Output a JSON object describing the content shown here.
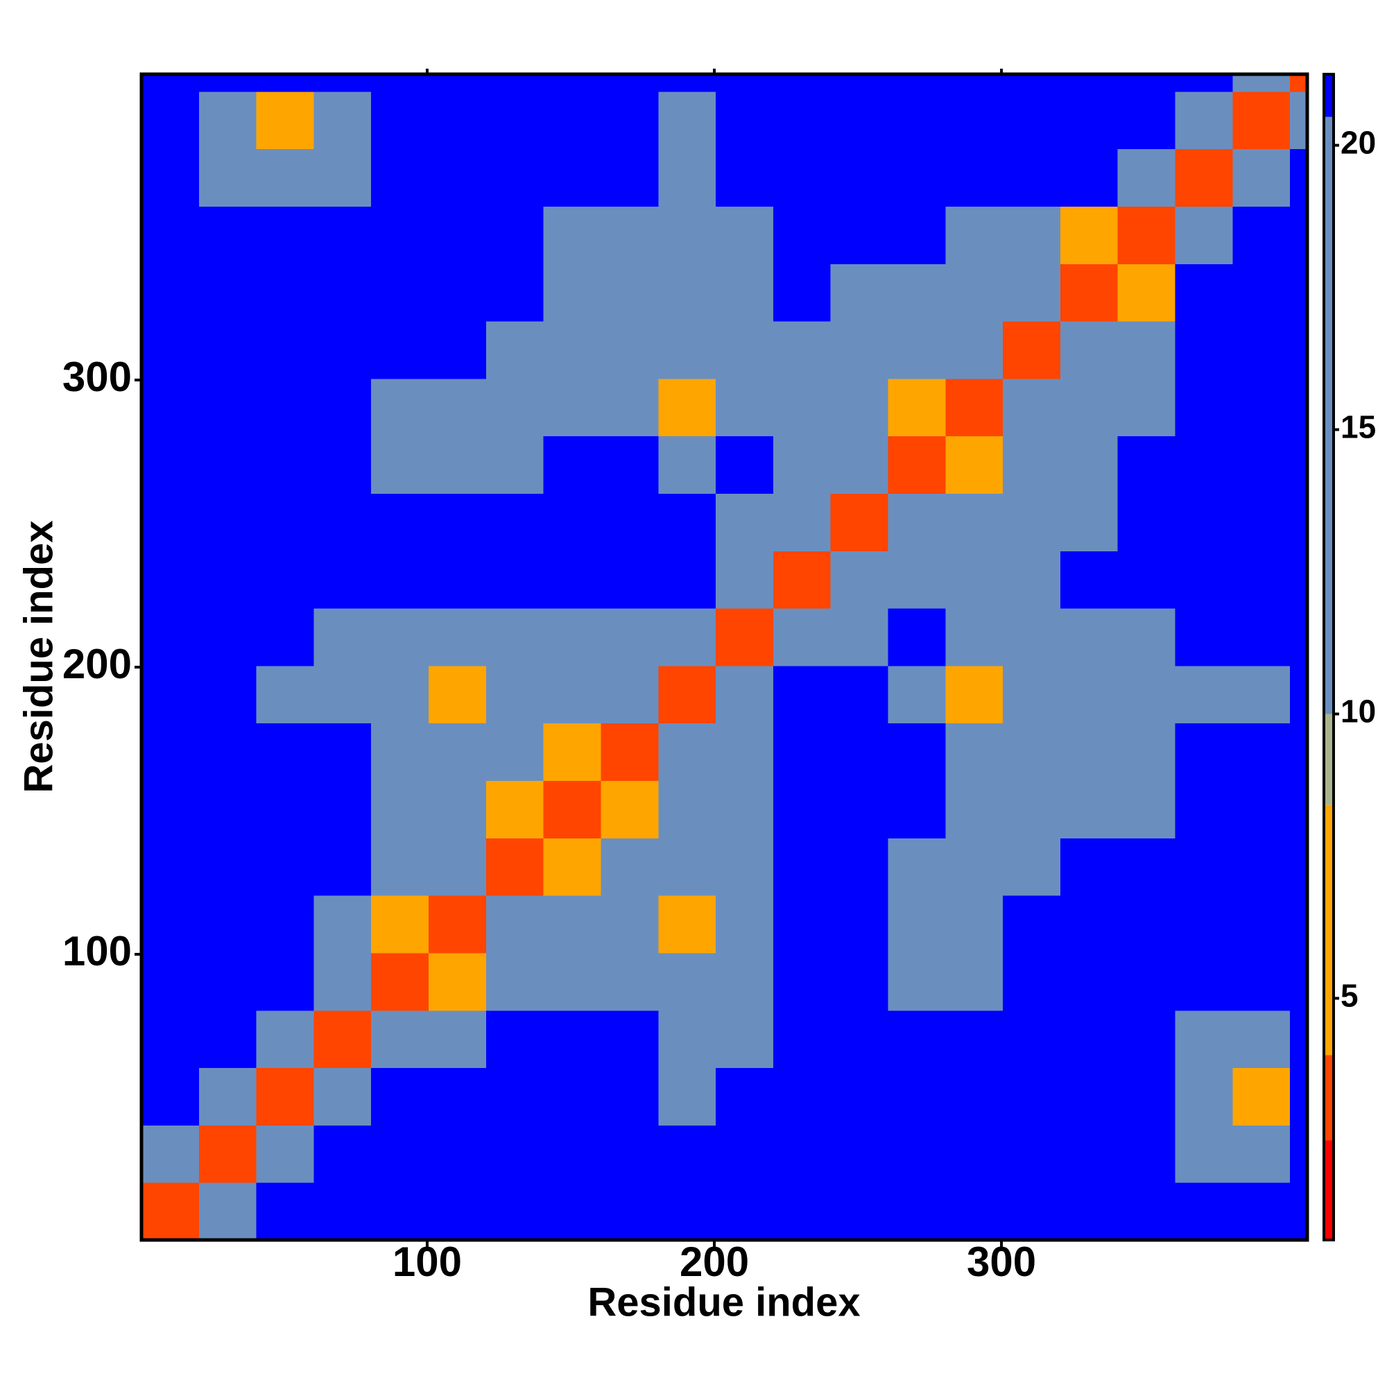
{
  "chart_data": {
    "type": "heatmap",
    "xlabel": "Residue index",
    "ylabel": "Residue index",
    "xlim": [
      0.5,
      406.5
    ],
    "ylim": [
      0.5,
      406.5
    ],
    "xticks": [
      100,
      200,
      300
    ],
    "yticks": [
      100,
      200,
      300
    ],
    "xbins": [
      0.5,
      20.5,
      40.5,
      60.5,
      80.5,
      100.5,
      120.5,
      140.5,
      160.5,
      180.5,
      200.5,
      220.5,
      240.5,
      260.5,
      280.5,
      300.5,
      320.5,
      340.5,
      360.5,
      380.5,
      400.5,
      406.5
    ],
    "ybins": [
      0.5,
      20.5,
      40.5,
      60.5,
      80.5,
      100.5,
      120.5,
      140.5,
      160.5,
      180.5,
      200.5,
      220.5,
      240.5,
      260.5,
      280.5,
      300.5,
      320.5,
      340.5,
      360.5,
      380.5,
      400.5,
      406.5
    ],
    "z": [
      [
        3,
        14,
        21,
        21,
        21,
        21,
        21,
        21,
        21,
        21,
        21,
        21,
        21,
        21,
        21,
        21,
        21,
        21,
        21,
        21,
        21
      ],
      [
        14,
        3,
        14,
        21,
        21,
        21,
        21,
        21,
        21,
        21,
        21,
        21,
        21,
        21,
        21,
        21,
        21,
        21,
        14,
        14,
        21
      ],
      [
        21,
        14,
        3,
        14,
        21,
        21,
        21,
        21,
        21,
        14,
        21,
        21,
        21,
        21,
        21,
        21,
        21,
        21,
        14,
        8,
        21
      ],
      [
        21,
        21,
        14,
        3,
        14,
        14,
        21,
        21,
        21,
        14,
        14,
        21,
        21,
        21,
        21,
        21,
        21,
        21,
        14,
        14,
        21
      ],
      [
        21,
        21,
        21,
        14,
        3,
        8,
        14,
        14,
        14,
        14,
        14,
        21,
        21,
        14,
        14,
        21,
        21,
        21,
        21,
        21,
        21
      ],
      [
        21,
        21,
        21,
        14,
        8,
        3,
        14,
        14,
        14,
        8,
        14,
        21,
        21,
        14,
        14,
        21,
        21,
        21,
        21,
        21,
        21
      ],
      [
        21,
        21,
        21,
        21,
        14,
        14,
        3,
        8,
        14,
        14,
        14,
        21,
        21,
        14,
        14,
        14,
        21,
        21,
        21,
        21,
        21
      ],
      [
        21,
        21,
        21,
        21,
        14,
        14,
        8,
        3,
        8,
        14,
        14,
        21,
        21,
        21,
        14,
        14,
        14,
        14,
        21,
        21,
        21
      ],
      [
        21,
        21,
        21,
        21,
        14,
        14,
        14,
        8,
        3,
        14,
        14,
        21,
        21,
        21,
        14,
        14,
        14,
        14,
        21,
        21,
        21
      ],
      [
        21,
        21,
        14,
        14,
        14,
        8,
        14,
        14,
        14,
        3,
        14,
        21,
        21,
        14,
        8,
        14,
        14,
        14,
        14,
        14,
        21
      ],
      [
        21,
        21,
        21,
        14,
        14,
        14,
        14,
        14,
        14,
        14,
        3,
        14,
        14,
        21,
        14,
        14,
        14,
        14,
        21,
        21,
        21
      ],
      [
        21,
        21,
        21,
        21,
        21,
        21,
        21,
        21,
        21,
        21,
        14,
        3,
        14,
        14,
        14,
        14,
        21,
        21,
        21,
        21,
        21
      ],
      [
        21,
        21,
        21,
        21,
        21,
        21,
        21,
        21,
        21,
        21,
        14,
        14,
        3,
        14,
        14,
        14,
        14,
        21,
        21,
        21,
        21
      ],
      [
        21,
        21,
        21,
        21,
        14,
        14,
        14,
        21,
        21,
        14,
        21,
        14,
        14,
        3,
        8,
        14,
        14,
        21,
        21,
        21,
        21
      ],
      [
        21,
        21,
        21,
        21,
        14,
        14,
        14,
        14,
        14,
        8,
        14,
        14,
        14,
        8,
        3,
        14,
        14,
        14,
        21,
        21,
        21
      ],
      [
        21,
        21,
        21,
        21,
        21,
        21,
        14,
        14,
        14,
        14,
        14,
        14,
        14,
        14,
        14,
        3,
        14,
        14,
        21,
        21,
        21
      ],
      [
        21,
        21,
        21,
        21,
        21,
        21,
        21,
        14,
        14,
        14,
        14,
        21,
        14,
        14,
        14,
        14,
        3,
        8,
        21,
        21,
        21
      ],
      [
        21,
        21,
        21,
        21,
        21,
        21,
        21,
        14,
        14,
        14,
        14,
        21,
        21,
        21,
        14,
        14,
        8,
        3,
        14,
        21,
        21
      ],
      [
        21,
        14,
        14,
        14,
        21,
        21,
        21,
        21,
        21,
        14,
        21,
        21,
        21,
        21,
        21,
        21,
        21,
        14,
        3,
        14,
        21
      ],
      [
        21,
        14,
        8,
        14,
        21,
        21,
        21,
        21,
        21,
        14,
        21,
        21,
        21,
        21,
        21,
        21,
        21,
        21,
        14,
        3,
        14
      ],
      [
        21,
        21,
        21,
        21,
        21,
        21,
        21,
        21,
        21,
        21,
        21,
        21,
        21,
        21,
        21,
        21,
        21,
        21,
        21,
        14,
        3
      ]
    ],
    "colorscale": [
      [
        2.5,
        "#ff0000"
      ],
      [
        4,
        "#ff4500"
      ],
      [
        8.4,
        "#ffa500"
      ],
      [
        10,
        "#a9b48c"
      ],
      [
        20.5,
        "#6a8fbf"
      ],
      [
        21.25,
        "#0000ff"
      ]
    ],
    "colorbar": {
      "lim": [
        0.75,
        21.25
      ],
      "ticks": [
        5,
        10,
        15,
        20
      ]
    }
  }
}
